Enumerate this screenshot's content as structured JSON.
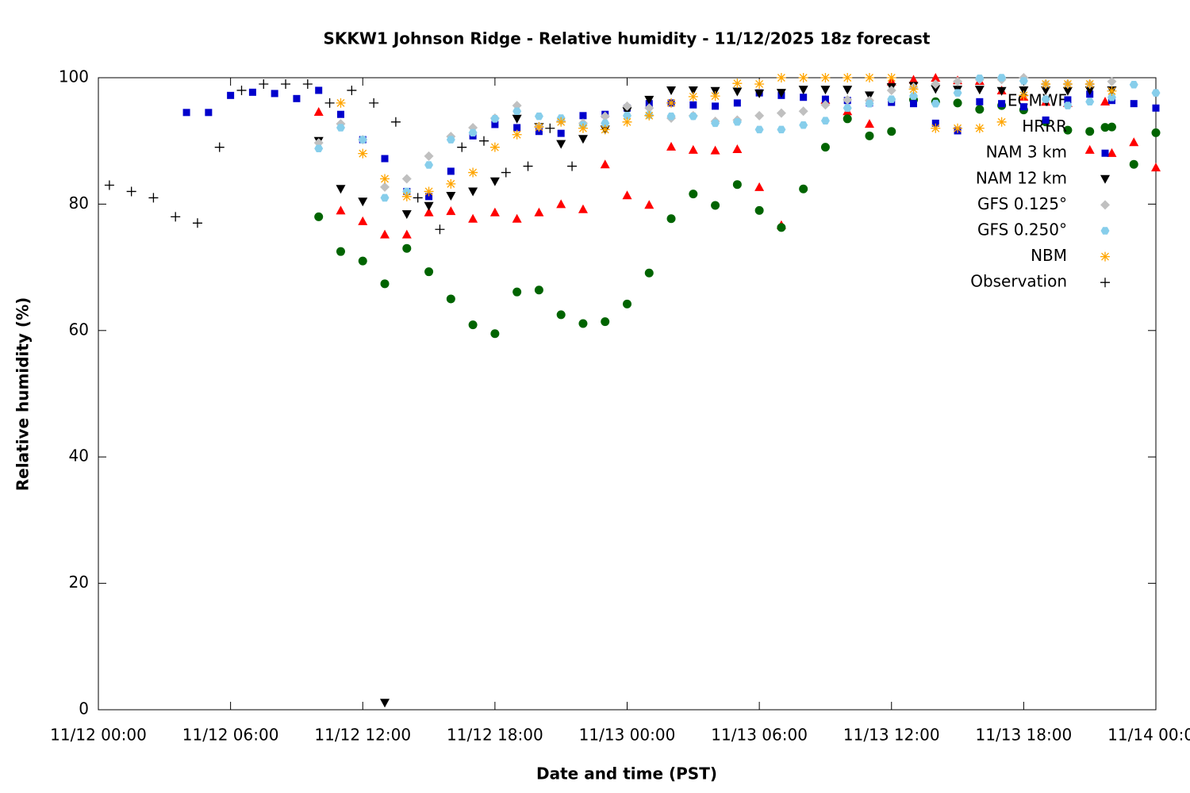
{
  "chart_data": {
    "type": "scatter",
    "title": "SKKW1 Johnson Ridge - Relative humidity - 11/12/2025 18z forecast",
    "x_label": "Date and time (PST)",
    "y_label": "Relative humidity (%)",
    "xlim": [
      "11/12 00:00",
      "11/14 00:00"
    ],
    "xticks": [
      "11/12 00:00",
      "11/12 06:00",
      "11/12 12:00",
      "11/12 18:00",
      "11/13 00:00",
      "11/13 06:00",
      "11/13 12:00",
      "11/13 18:00",
      "11/14 00:00"
    ],
    "ylim": [
      0,
      100
    ],
    "yticks": [
      0,
      20,
      40,
      60,
      80,
      100
    ],
    "grid": false,
    "legend": "upper right",
    "x": [
      "11/12 04:00",
      "11/12 05:00",
      "11/12 06:00",
      "11/12 07:00",
      "11/12 08:00",
      "11/12 09:00",
      "11/12 10:00",
      "11/12 11:00",
      "11/12 12:00",
      "11/12 13:00",
      "11/12 14:00",
      "11/12 15:00",
      "11/12 16:00",
      "11/12 17:00",
      "11/12 18:00",
      "11/12 19:00",
      "11/12 20:00",
      "11/12 21:00",
      "11/12 22:00",
      "11/12 23:00",
      "11/13 00:00",
      "11/13 01:00",
      "11/13 02:00",
      "11/13 03:00",
      "11/13 04:00",
      "11/13 05:00",
      "11/13 06:00",
      "11/13 07:00",
      "11/13 08:00",
      "11/13 09:00",
      "11/13 10:00",
      "11/13 11:00",
      "11/13 12:00",
      "11/13 13:00",
      "11/13 14:00",
      "11/13 15:00",
      "11/13 16:00",
      "11/13 17:00",
      "11/13 18:00",
      "11/13 19:00",
      "11/13 20:00",
      "11/13 21:00",
      "11/13 22:00",
      "11/13 23:00",
      "11/14 00:00"
    ],
    "series": [
      {
        "name": "ECMWF",
        "color": "#ff0000",
        "marker": "triangle-up",
        "values": [
          null,
          null,
          null,
          null,
          null,
          null,
          94.6,
          79,
          77.3,
          75.2,
          75.2,
          78.7,
          78.9,
          77.7,
          78.7,
          77.7,
          78.7,
          80,
          79.2,
          86.3,
          81.4,
          79.9,
          89.1,
          88.6,
          88.5,
          88.7,
          82.7,
          76.7,
          null,
          96.5,
          94.7,
          92.7,
          99.4,
          99.7,
          100,
          99.6,
          99.5,
          98,
          97,
          96.2,
          96,
          88.6,
          88.1,
          89.8,
          85.8
        ]
      },
      {
        "name": "HRRR",
        "color": "#006400",
        "marker": "circle",
        "values": [
          null,
          null,
          null,
          null,
          null,
          null,
          78,
          72.5,
          71,
          67.4,
          73,
          69.3,
          65,
          60.9,
          59.5,
          66.1,
          66.4,
          62.5,
          61.1,
          61.4,
          64.2,
          69.1,
          77.7,
          81.6,
          79.8,
          83.1,
          79,
          76.3,
          82.4,
          89,
          93.5,
          90.8,
          91.5,
          96.5,
          96.2,
          96,
          95,
          95.6,
          94.9,
          93,
          91.7,
          91.5,
          92.2,
          86.3,
          91.3
        ]
      },
      {
        "name": "NAM 3 km",
        "color": "#0000cc",
        "marker": "square",
        "values": [
          94.5,
          94.5,
          97.2,
          97.7,
          97.5,
          96.7,
          98,
          94.2,
          90.2,
          87.2,
          82,
          81.2,
          85.2,
          90.8,
          92.6,
          92.1,
          91.5,
          91.2,
          94,
          94.2,
          95.2,
          95.9,
          96,
          95.7,
          95.5,
          96,
          97.6,
          97.2,
          96.9,
          96.6,
          96.4,
          96,
          96.1,
          95.9,
          92.8,
          91.6,
          96.2,
          95.9,
          95.4,
          93.3,
          96.5,
          97.4,
          96.4,
          95.9,
          95.2
        ]
      },
      {
        "name": "NAM 12 km",
        "color": "#000000",
        "marker": "triangle-down",
        "values": [
          null,
          null,
          null,
          null,
          null,
          null,
          90,
          82.4,
          80.4,
          1.1,
          78.4,
          79.7,
          81.3,
          82,
          83.6,
          93.5,
          92.2,
          89.5,
          90.3,
          91.8,
          94.7,
          96.5,
          98,
          98,
          97.9,
          97.8,
          97.5,
          97.6,
          98.1,
          98.1,
          98.1,
          97.2,
          98.5,
          98.7,
          98.2,
          98.1,
          98.1,
          97.9,
          98,
          98,
          97.9,
          98,
          98,
          null,
          null
        ]
      },
      {
        "name": "GFS 0.125°",
        "color": "#c0c0c0",
        "marker": "diamond",
        "values": [
          null,
          null,
          null,
          null,
          null,
          null,
          89.7,
          92.7,
          90.2,
          82.7,
          84,
          87.6,
          90.7,
          92.1,
          93.6,
          95.6,
          92.3,
          93.2,
          92.8,
          93.9,
          95.5,
          95.2,
          93.6,
          94,
          93.1,
          93.3,
          94,
          94.4,
          94.7,
          95.7,
          96.5,
          96.4,
          98,
          98.5,
          99,
          99.4,
          99.7,
          99.7,
          100,
          99,
          99,
          99,
          99.4,
          null,
          null
        ]
      },
      {
        "name": "GFS 0.250°",
        "color": "#87ceeb",
        "marker": "hexagon",
        "values": [
          null,
          null,
          null,
          null,
          null,
          null,
          88.8,
          92.1,
          90.2,
          81,
          82,
          86.2,
          90.2,
          91.3,
          93.5,
          94.7,
          93.9,
          93.6,
          92.5,
          92.8,
          94,
          94.1,
          93.9,
          93.9,
          92.8,
          93,
          91.8,
          91.8,
          92.5,
          93.2,
          95.2,
          95.9,
          96.6,
          97.1,
          95.9,
          97.6,
          99.9,
          100,
          99.5,
          96.6,
          95.6,
          96.2,
          96.9,
          98.9,
          97.6
        ]
      },
      {
        "name": "NBM",
        "color": "#ffa500",
        "marker": "asterisk",
        "values": [
          null,
          null,
          null,
          null,
          null,
          null,
          null,
          96,
          88,
          84,
          81.2,
          82,
          83.2,
          85,
          89,
          91,
          92.2,
          93,
          92,
          91.8,
          93,
          94,
          96,
          97,
          97.1,
          99.1,
          99,
          100,
          100,
          100,
          100,
          100,
          100,
          98.2,
          92,
          92,
          92,
          93,
          97.2,
          99,
          99,
          99,
          97.9,
          null,
          null
        ]
      },
      {
        "name": "Observation",
        "color": "#000000",
        "marker": "plus",
        "x": [
          "11/12 00:30",
          "11/12 01:30",
          "11/12 02:30",
          "11/12 03:30",
          "11/12 04:30",
          "11/12 05:30",
          "11/12 06:30",
          "11/12 07:30",
          "11/12 08:30",
          "11/12 09:30",
          "11/12 10:30",
          "11/12 11:30",
          "11/12 12:30",
          "11/12 13:30",
          "11/12 14:30",
          "11/12 15:30",
          "11/12 16:30",
          "11/12 17:30",
          "11/12 18:30",
          "11/12 19:30",
          "11/12 20:30",
          "11/12 21:30"
        ],
        "values": [
          83,
          82,
          81,
          78,
          77,
          89,
          98,
          99,
          99,
          99,
          96,
          98,
          96,
          93,
          81,
          76,
          89,
          90,
          85,
          86,
          92,
          86
        ]
      }
    ]
  }
}
